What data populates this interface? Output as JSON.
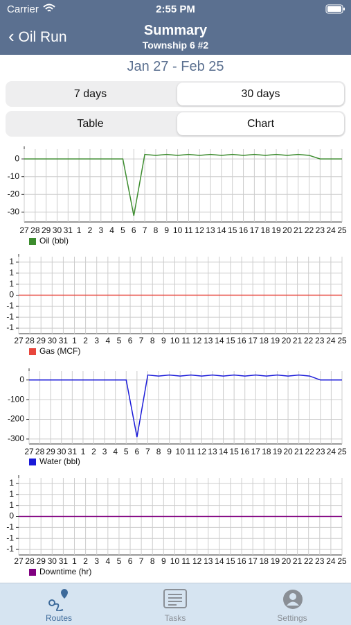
{
  "status_bar": {
    "carrier": "Carrier",
    "time": "2:55 PM"
  },
  "nav": {
    "back": "Oil Run",
    "title": "Summary",
    "subtitle": "Township 6 #2"
  },
  "date_range": "Jan 27 - Feb 25",
  "segments": {
    "range": [
      "7 days",
      "30 days"
    ],
    "view": [
      "Table",
      "Chart"
    ]
  },
  "chart_data": [
    {
      "type": "line",
      "categories": [
        "27",
        "28",
        "29",
        "30",
        "31",
        "1",
        "2",
        "3",
        "4",
        "5",
        "6",
        "7",
        "8",
        "9",
        "10",
        "11",
        "12",
        "13",
        "14",
        "15",
        "16",
        "17",
        "18",
        "19",
        "20",
        "21",
        "22",
        "23",
        "24",
        "25"
      ],
      "series": [
        {
          "name": "Oil (bbl)",
          "color": "#3c8c2e",
          "values": [
            0,
            0,
            0,
            0,
            0,
            0,
            0,
            0,
            0,
            0,
            -32,
            2.5,
            2,
            2.5,
            2,
            2.5,
            2,
            2.5,
            2,
            2.5,
            2,
            2.5,
            2,
            2.5,
            2,
            2.5,
            2,
            0,
            0,
            0
          ]
        }
      ],
      "ylim": [
        -35.5,
        5.5
      ],
      "yticks": [
        0,
        -10,
        -20,
        -30
      ],
      "grid": true
    },
    {
      "type": "line",
      "categories": [
        "27",
        "28",
        "29",
        "30",
        "31",
        "1",
        "2",
        "3",
        "4",
        "5",
        "6",
        "7",
        "8",
        "9",
        "10",
        "11",
        "12",
        "13",
        "14",
        "15",
        "16",
        "17",
        "18",
        "19",
        "20",
        "21",
        "22",
        "23",
        "24",
        "25"
      ],
      "series": [
        {
          "name": "Gas (MCF)",
          "color": "#e8463c",
          "values": [
            0,
            0,
            0,
            0,
            0,
            0,
            0,
            0,
            0,
            0,
            0,
            0,
            0,
            0,
            0,
            0,
            0,
            0,
            0,
            0,
            0,
            0,
            0,
            0,
            0,
            0,
            0,
            0,
            0,
            0
          ]
        }
      ],
      "ylim": [
        -1.75,
        1.75
      ],
      "yticks": [
        {
          "value": 1.5,
          "label": "1"
        },
        {
          "value": 1,
          "label": "1"
        },
        {
          "value": 0.5,
          "label": "1"
        },
        0,
        {
          "value": -0.5,
          "label": "-1"
        },
        {
          "value": -1,
          "label": "-1"
        },
        {
          "value": -1.5,
          "label": "-1"
        }
      ],
      "grid": true
    },
    {
      "type": "line",
      "categories": [
        "27",
        "28",
        "29",
        "30",
        "31",
        "1",
        "2",
        "3",
        "4",
        "5",
        "6",
        "7",
        "8",
        "9",
        "10",
        "11",
        "12",
        "13",
        "14",
        "15",
        "16",
        "17",
        "18",
        "19",
        "20",
        "21",
        "22",
        "23",
        "24",
        "25"
      ],
      "series": [
        {
          "name": "Water (bbl)",
          "color": "#1a1ad8",
          "values": [
            0,
            0,
            0,
            0,
            0,
            0,
            0,
            0,
            0,
            0,
            -290,
            25,
            20,
            25,
            20,
            25,
            20,
            25,
            20,
            25,
            20,
            25,
            20,
            25,
            20,
            25,
            20,
            0,
            0,
            0
          ]
        }
      ],
      "ylim": [
        -325,
        45
      ],
      "yticks": [
        0,
        -100,
        -200,
        -300
      ],
      "grid": true
    },
    {
      "type": "line",
      "categories": [
        "27",
        "28",
        "29",
        "30",
        "31",
        "1",
        "2",
        "3",
        "4",
        "5",
        "6",
        "7",
        "8",
        "9",
        "10",
        "11",
        "12",
        "13",
        "14",
        "15",
        "16",
        "17",
        "18",
        "19",
        "20",
        "21",
        "22",
        "23",
        "24",
        "25"
      ],
      "series": [
        {
          "name": "Downtime (hr)",
          "color": "#800080",
          "values": [
            0,
            0,
            0,
            0,
            0,
            0,
            0,
            0,
            0,
            0,
            0,
            0,
            0,
            0,
            0,
            0,
            0,
            0,
            0,
            0,
            0,
            0,
            0,
            0,
            0,
            0,
            0,
            0,
            0,
            0
          ]
        }
      ],
      "ylim": [
        -1.75,
        1.75
      ],
      "yticks": [
        {
          "value": 1.5,
          "label": "1"
        },
        {
          "value": 1,
          "label": "1"
        },
        {
          "value": 0.5,
          "label": "1"
        },
        0,
        {
          "value": -0.5,
          "label": "-1"
        },
        {
          "value": -1,
          "label": "-1"
        },
        {
          "value": -1.5,
          "label": "-1"
        }
      ],
      "grid": true
    }
  ],
  "tab_bar": {
    "items": [
      "Routes",
      "Tasks",
      "Settings"
    ]
  }
}
